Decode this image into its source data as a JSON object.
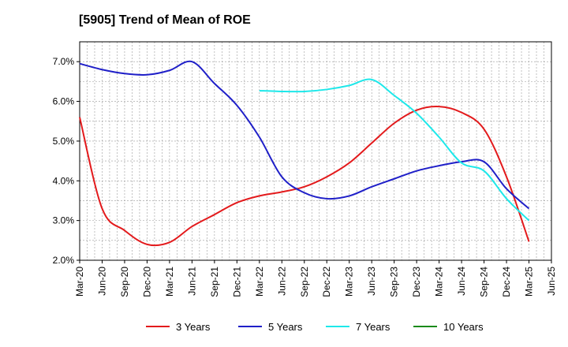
{
  "chart_data": {
    "type": "line",
    "title": "[5905]  Trend of Mean of ROE",
    "xlabel": "",
    "ylabel": "",
    "x": [
      "Mar-20",
      "Jun-20",
      "Sep-20",
      "Dec-20",
      "Mar-21",
      "Jun-21",
      "Sep-21",
      "Dec-21",
      "Mar-22",
      "Jun-22",
      "Sep-22",
      "Dec-22",
      "Mar-23",
      "Jun-23",
      "Sep-23",
      "Dec-23",
      "Mar-24",
      "Jun-24",
      "Sep-24",
      "Dec-24",
      "Mar-25",
      "Jun-25"
    ],
    "y_ticks": [
      "2.0%",
      "3.0%",
      "4.0%",
      "5.0%",
      "6.0%",
      "7.0%"
    ],
    "ylim": [
      2.0,
      7.5
    ],
    "grid": true,
    "legend_position": "bottom",
    "series": [
      {
        "name": "3 Years",
        "color": "#e31a1c",
        "points": [
          [
            "Mar-20",
            5.6
          ],
          [
            "Jun-20",
            3.3
          ],
          [
            "Sep-20",
            2.75
          ],
          [
            "Dec-20",
            2.4
          ],
          [
            "Mar-21",
            2.45
          ],
          [
            "Jun-21",
            2.85
          ],
          [
            "Sep-21",
            3.15
          ],
          [
            "Dec-21",
            3.45
          ],
          [
            "Mar-22",
            3.62
          ],
          [
            "Jun-22",
            3.72
          ],
          [
            "Sep-22",
            3.85
          ],
          [
            "Dec-22",
            4.1
          ],
          [
            "Mar-23",
            4.45
          ],
          [
            "Jun-23",
            4.95
          ],
          [
            "Sep-23",
            5.45
          ],
          [
            "Dec-23",
            5.78
          ],
          [
            "Mar-24",
            5.87
          ],
          [
            "Jun-24",
            5.72
          ],
          [
            "Sep-24",
            5.3
          ],
          [
            "Dec-24",
            4.1
          ],
          [
            "Mar-25",
            2.47
          ]
        ]
      },
      {
        "name": "5 Years",
        "color": "#1f1fc8",
        "points": [
          [
            "Mar-20",
            6.95
          ],
          [
            "Jun-20",
            6.8
          ],
          [
            "Sep-20",
            6.7
          ],
          [
            "Dec-20",
            6.67
          ],
          [
            "Mar-21",
            6.78
          ],
          [
            "Jun-21",
            7.0
          ],
          [
            "Sep-21",
            6.45
          ],
          [
            "Dec-21",
            5.9
          ],
          [
            "Mar-22",
            5.1
          ],
          [
            "Jun-22",
            4.1
          ],
          [
            "Sep-22",
            3.7
          ],
          [
            "Dec-22",
            3.55
          ],
          [
            "Mar-23",
            3.62
          ],
          [
            "Jun-23",
            3.85
          ],
          [
            "Sep-23",
            4.05
          ],
          [
            "Dec-23",
            4.25
          ],
          [
            "Mar-24",
            4.38
          ],
          [
            "Jun-24",
            4.48
          ],
          [
            "Sep-24",
            4.48
          ],
          [
            "Dec-24",
            3.8
          ],
          [
            "Mar-25",
            3.3
          ]
        ]
      },
      {
        "name": "7 Years",
        "color": "#1ee8ea",
        "points": [
          [
            "Mar-22",
            6.27
          ],
          [
            "Jun-22",
            6.25
          ],
          [
            "Sep-22",
            6.25
          ],
          [
            "Dec-22",
            6.3
          ],
          [
            "Mar-23",
            6.4
          ],
          [
            "Jun-23",
            6.55
          ],
          [
            "Sep-23",
            6.15
          ],
          [
            "Dec-23",
            5.7
          ],
          [
            "Mar-24",
            5.1
          ],
          [
            "Jun-24",
            4.45
          ],
          [
            "Sep-24",
            4.25
          ],
          [
            "Dec-24",
            3.55
          ],
          [
            "Mar-25",
            3.0
          ]
        ]
      },
      {
        "name": "10 Years",
        "color": "#1a8a1a",
        "points": []
      }
    ]
  }
}
